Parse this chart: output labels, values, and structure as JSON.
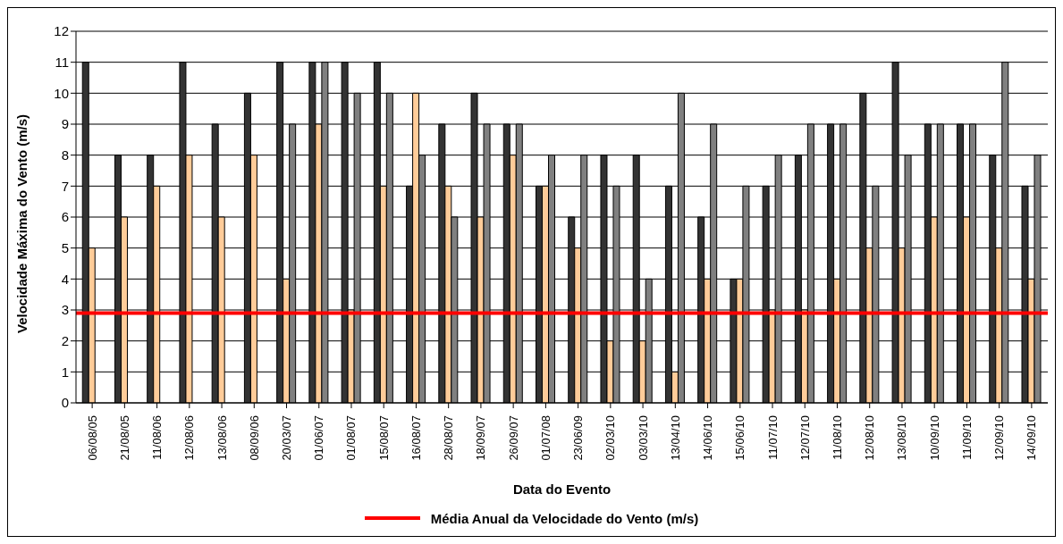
{
  "chart_data": {
    "type": "bar",
    "xlabel": "Data do Evento",
    "ylabel": "Velocidade Máxima do Vento (m/s)",
    "categories": [
      "06/08/05",
      "21/08/05",
      "11/08/06",
      "12/08/06",
      "13/08/06",
      "08/09/06",
      "20/03/07",
      "01/06/07",
      "01/08/07",
      "15/08/07",
      "16/08/07",
      "28/08/07",
      "18/09/07",
      "26/09/07",
      "01/07/08",
      "23/06/09",
      "02/03/10",
      "03/03/10",
      "13/04/10",
      "14/06/10",
      "15/06/10",
      "11/07/10",
      "12/07/10",
      "11/08/10",
      "12/08/10",
      "13/08/10",
      "10/09/10",
      "11/09/10",
      "12/09/10",
      "14/09/10"
    ],
    "series": [
      {
        "color": "#333333",
        "values": [
          11,
          8,
          8,
          11,
          9,
          10,
          11,
          11,
          11,
          11,
          7,
          9,
          10,
          9,
          7,
          6,
          8,
          8,
          7,
          6,
          4,
          7,
          8,
          9,
          10,
          11,
          9,
          9,
          8,
          7
        ]
      },
      {
        "color": "#ffcc99",
        "values": [
          5,
          6,
          7,
          8,
          6,
          8,
          4,
          9,
          3,
          7,
          10,
          7,
          6,
          8,
          7,
          5,
          2,
          2,
          1,
          4,
          4,
          3,
          3,
          4,
          5,
          5,
          6,
          6,
          5,
          4
        ]
      },
      {
        "color": "#808080",
        "values": [
          null,
          null,
          null,
          null,
          null,
          null,
          9,
          11,
          10,
          10,
          8,
          6,
          9,
          9,
          8,
          8,
          7,
          4,
          10,
          9,
          7,
          8,
          9,
          9,
          7,
          8,
          9,
          9,
          11,
          8
        ]
      }
    ],
    "ylim": [
      0,
      12
    ],
    "yticks": [
      0,
      1,
      2,
      3,
      4,
      5,
      6,
      7,
      8,
      9,
      10,
      11,
      12
    ],
    "grid": "y",
    "legend": "bottom",
    "ref_lines": [
      {
        "axis": "y",
        "value": 2.9,
        "label": "Média Anual da Velocidade do Vento (m/s)",
        "color": "#ff0000"
      }
    ]
  }
}
